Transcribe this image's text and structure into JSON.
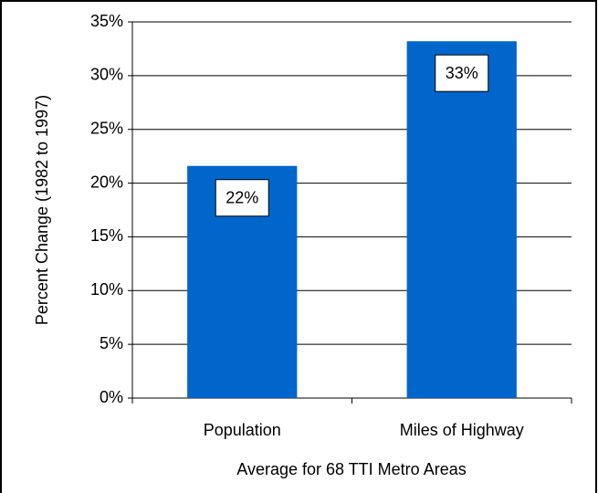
{
  "chart_data": {
    "type": "bar",
    "y_label": "Percent Change (1982 to 1997)",
    "x_label": "Average for 68 TTI Metro Areas",
    "categories": [
      "Population",
      "Miles of Highway"
    ],
    "values": [
      21.6,
      33.2
    ],
    "value_labels": [
      "22%",
      "33%"
    ],
    "color": "#0066cc",
    "ylim": [
      0,
      35
    ],
    "yticks": [
      {
        "value": 0,
        "label": "0%"
      },
      {
        "value": 5,
        "label": "5%"
      },
      {
        "value": 10,
        "label": "10%"
      },
      {
        "value": 15,
        "label": "15%"
      },
      {
        "value": 20,
        "label": "20%"
      },
      {
        "value": 25,
        "label": "25%"
      },
      {
        "value": 30,
        "label": "30%"
      },
      {
        "value": 35,
        "label": "35%"
      }
    ],
    "grid": true
  }
}
